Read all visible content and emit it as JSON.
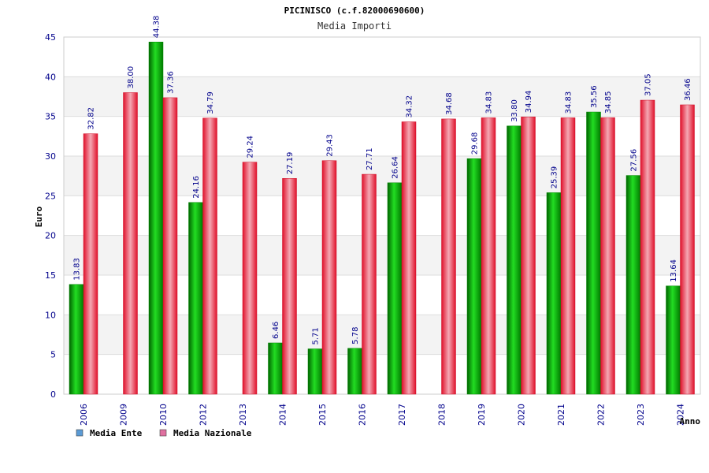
{
  "chart_data": {
    "type": "bar",
    "title": "PICINISCO (c.f.82000690600)",
    "subtitle": "Media Importi",
    "ylabel": "Euro",
    "xlabel": "Anno",
    "ylim": [
      0,
      45
    ],
    "yticks": [
      0,
      5,
      10,
      15,
      20,
      25,
      30,
      35,
      40,
      45
    ],
    "grid": true,
    "legend_position": "bottom-left",
    "categories": [
      "2006",
      "2009",
      "2010",
      "2012",
      "2013",
      "2014",
      "2015",
      "2016",
      "2017",
      "2018",
      "2019",
      "2020",
      "2021",
      "2022",
      "2023",
      "2024"
    ],
    "series": [
      {
        "name": "Media Ente",
        "color": "#00aa00",
        "legend_color": "#5b9bd5",
        "values": [
          13.83,
          null,
          44.38,
          24.16,
          null,
          6.46,
          5.71,
          5.78,
          26.64,
          null,
          29.68,
          33.8,
          25.39,
          35.56,
          27.56,
          13.64
        ],
        "labels": [
          "13.83",
          null,
          "44.38",
          "24.16",
          null,
          "6.46",
          "5.71",
          "5.78",
          "26.64",
          null,
          "29.68",
          "33.80",
          "25.39",
          "35.56",
          "27.56",
          "13.64"
        ]
      },
      {
        "name": "Media Nazionale",
        "color": "#e8102a",
        "legend_color": "#e070a0",
        "values": [
          32.82,
          38.0,
          37.36,
          34.79,
          29.24,
          27.19,
          29.43,
          27.71,
          34.32,
          34.68,
          34.83,
          34.94,
          34.83,
          34.85,
          37.05,
          36.46
        ],
        "labels": [
          "32.82",
          "38.00",
          "37.36",
          "34.79",
          "29.24",
          "27.19",
          "29.43",
          "27.71",
          "34.32",
          "34.68",
          "34.83",
          "34.94",
          "34.83",
          "34.85",
          "37.05",
          "36.46"
        ]
      }
    ]
  }
}
